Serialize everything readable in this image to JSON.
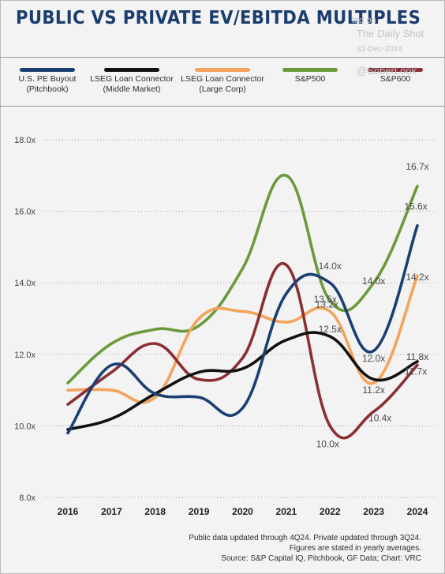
{
  "header": {
    "title": "PUBLIC VS PRIVATE EV/EBITDA MULTIPLES"
  },
  "watermark": {
    "prefix": "ted on",
    "source": "The Daily Shot",
    "date": "31-Dec-2024",
    "handle": "@SoberLook"
  },
  "footnotes": {
    "line1": "Public data updated through 4Q24. Private updated through 3Q24.",
    "line2": "Figures are stated in yearly averages.",
    "line3": "Source: S&P Capital IQ, Pitchbook, GF Data; Chart: VRC"
  },
  "chart_data": {
    "type": "line",
    "title": "PUBLIC VS PRIVATE EV/EBITDA MULTIPLES",
    "x": [
      "2016",
      "2017",
      "2018",
      "2019",
      "2020",
      "2021",
      "2022",
      "2023",
      "2024"
    ],
    "ylim": [
      8.0,
      18.0
    ],
    "yticks": [
      8.0,
      10.0,
      12.0,
      14.0,
      16.0,
      18.0
    ],
    "ytick_labels": [
      "8.0x",
      "10.0x",
      "12.0x",
      "14.0x",
      "16.0x",
      "18.0x"
    ],
    "grid": "horizontal dotted",
    "legend_position": "top",
    "series": [
      {
        "name": "U.S. PE Buyout\n(Pitchbook)",
        "color": "#1c3f73",
        "values": [
          9.8,
          11.7,
          10.9,
          10.8,
          10.5,
          13.7,
          14.0,
          12.1,
          15.6
        ],
        "labels": [
          {
            "x": "2022",
            "text": "14.0x"
          },
          {
            "x": "2024",
            "text": "15.6x"
          }
        ]
      },
      {
        "name": "LSEG Loan Connector\n(Middle Market)",
        "color": "#111111",
        "values": [
          9.9,
          10.2,
          10.9,
          11.5,
          11.6,
          12.4,
          12.5,
          11.3,
          11.8
        ],
        "labels": [
          {
            "x": "2022",
            "text": "12.5x"
          },
          {
            "x": "2024",
            "text": "11.8x"
          }
        ]
      },
      {
        "name": "LSEG Loan Connector\n(Large Corp)",
        "color": "#f3a35a",
        "values": [
          11.0,
          11.0,
          10.8,
          13.0,
          13.2,
          12.9,
          13.2,
          11.2,
          14.2
        ],
        "labels": [
          {
            "x": "2022",
            "text": "13.2x"
          },
          {
            "x": "2023",
            "text": "11.2x"
          },
          {
            "x": "2024",
            "text": "14.2x"
          }
        ]
      },
      {
        "name": "S&P500",
        "color": "#6b9a3a",
        "values": [
          11.2,
          12.3,
          12.7,
          12.8,
          14.4,
          17.0,
          13.5,
          14.0,
          16.7
        ],
        "labels": [
          {
            "x": "2022",
            "text": "13.5x"
          },
          {
            "x": "2023",
            "text": "14.0x"
          },
          {
            "x": "2024",
            "text": "16.7x"
          }
        ]
      },
      {
        "name": "S&P600",
        "color": "#8b2f33",
        "values": [
          10.6,
          11.5,
          12.3,
          11.3,
          11.9,
          14.5,
          10.0,
          10.4,
          11.7
        ],
        "labels": [
          {
            "x": "2022",
            "text": "10.0x"
          },
          {
            "x": "2023",
            "text": "10.4x"
          },
          {
            "x": "2024",
            "text": "11.7x"
          }
        ]
      }
    ],
    "extra_labels": [
      {
        "x": "2023",
        "text": "12.0x"
      }
    ]
  }
}
